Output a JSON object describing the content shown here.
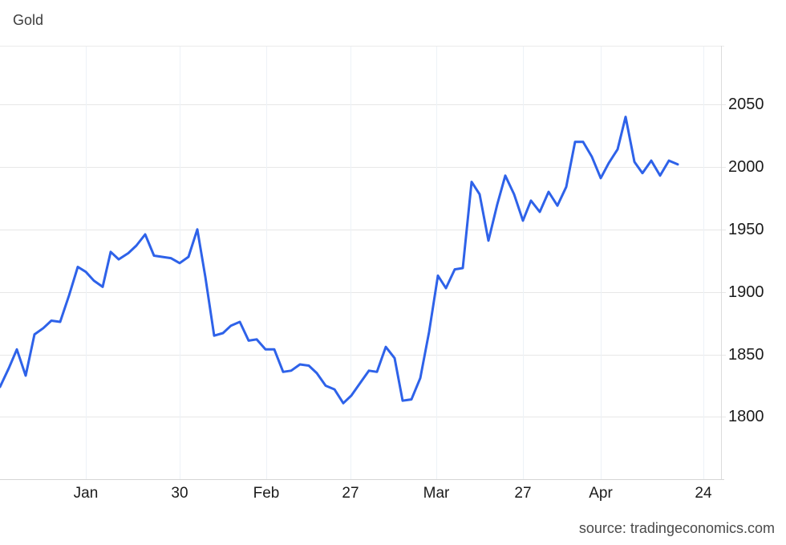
{
  "header": {
    "title": "Gold"
  },
  "footer": {
    "source": "source: tradingeconomics.com"
  },
  "colors": {
    "line": "#2e62e9",
    "h_grid": "#e7e7e7",
    "v_grid": "#edf2f7",
    "background": "#ffffff",
    "title_text": "#3d3d3d",
    "axis_text": "#1b1b1b",
    "source_text": "#4a4a4a"
  },
  "chart_data": {
    "type": "line",
    "title": "Gold",
    "legend": "none",
    "grid": "on",
    "y_axis": {
      "side": "right",
      "min": 1800,
      "max": 2050,
      "tick_interval": 50,
      "ticks": [
        2050,
        2000,
        1950,
        1900,
        1850,
        1800
      ]
    },
    "x_axis": {
      "ticks": [
        {
          "label": "Jan",
          "pos": 107
        },
        {
          "label": "30",
          "pos": 224
        },
        {
          "label": "Feb",
          "pos": 332
        },
        {
          "label": "27",
          "pos": 437
        },
        {
          "label": "Mar",
          "pos": 544
        },
        {
          "label": "27",
          "pos": 652
        },
        {
          "label": "Apr",
          "pos": 749
        },
        {
          "label": "24",
          "pos": 877
        }
      ]
    },
    "series": [
      {
        "name": "Gold",
        "points": [
          [
            0,
            1824
          ],
          [
            11,
            1839
          ],
          [
            21,
            1854
          ],
          [
            32,
            1833
          ],
          [
            43,
            1866
          ],
          [
            54,
            1871
          ],
          [
            64,
            1877
          ],
          [
            75,
            1876
          ],
          [
            86,
            1897
          ],
          [
            97,
            1920
          ],
          [
            107,
            1916
          ],
          [
            117,
            1909
          ],
          [
            128,
            1904
          ],
          [
            138,
            1932
          ],
          [
            148,
            1926
          ],
          [
            160,
            1931
          ],
          [
            170,
            1937
          ],
          [
            181,
            1946
          ],
          [
            192,
            1929
          ],
          [
            202,
            1928
          ],
          [
            213,
            1927
          ],
          [
            224,
            1923
          ],
          [
            235,
            1928
          ],
          [
            246,
            1950
          ],
          [
            256,
            1912
          ],
          [
            267,
            1865
          ],
          [
            278,
            1867
          ],
          [
            288,
            1873
          ],
          [
            299,
            1876
          ],
          [
            310,
            1861
          ],
          [
            320,
            1862
          ],
          [
            331,
            1854
          ],
          [
            342,
            1854
          ],
          [
            353,
            1836
          ],
          [
            363,
            1837
          ],
          [
            374,
            1842
          ],
          [
            385,
            1841
          ],
          [
            395,
            1835
          ],
          [
            406,
            1825
          ],
          [
            417,
            1822
          ],
          [
            428,
            1811
          ],
          [
            438,
            1817
          ],
          [
            449,
            1827
          ],
          [
            460,
            1837
          ],
          [
            470,
            1836
          ],
          [
            481,
            1856
          ],
          [
            492,
            1847
          ],
          [
            502,
            1813
          ],
          [
            513,
            1814
          ],
          [
            524,
            1831
          ],
          [
            535,
            1868
          ],
          [
            546,
            1913
          ],
          [
            556,
            1903
          ],
          [
            567,
            1918
          ],
          [
            577,
            1919
          ],
          [
            588,
            1988
          ],
          [
            598,
            1978
          ],
          [
            609,
            1941
          ],
          [
            620,
            1970
          ],
          [
            630,
            1993
          ],
          [
            641,
            1978
          ],
          [
            652,
            1957
          ],
          [
            662,
            1973
          ],
          [
            673,
            1964
          ],
          [
            684,
            1980
          ],
          [
            695,
            1969
          ],
          [
            706,
            1984
          ],
          [
            717,
            2020
          ],
          [
            727,
            2020
          ],
          [
            738,
            2008
          ],
          [
            749,
            1991
          ],
          [
            759,
            2003
          ],
          [
            770,
            2014
          ],
          [
            780,
            2040
          ],
          [
            791,
            2004
          ],
          [
            801,
            1995
          ],
          [
            812,
            2005
          ],
          [
            823,
            1993
          ],
          [
            834,
            2005
          ],
          [
            845,
            2002
          ]
        ]
      }
    ]
  }
}
